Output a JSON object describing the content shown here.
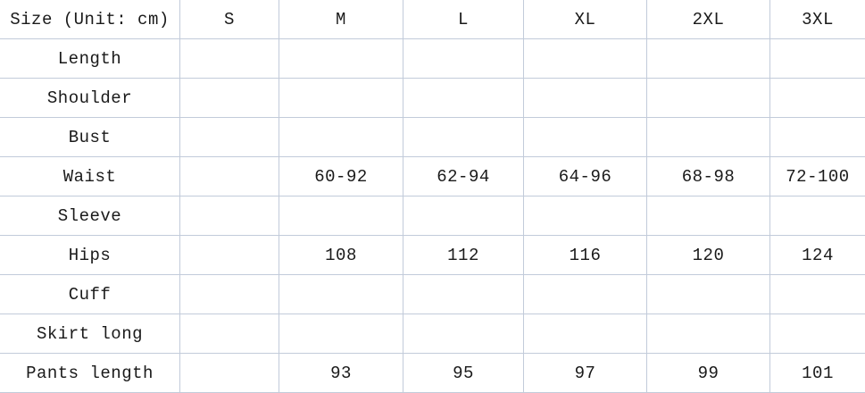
{
  "table": {
    "unit_header": "Size (Unit: cm)",
    "columns": [
      "S",
      "M",
      "L",
      "XL",
      "2XL",
      "3XL"
    ],
    "rows": [
      {
        "label": "Length",
        "values": [
          "",
          "",
          "",
          "",
          "",
          ""
        ]
      },
      {
        "label": "Shoulder",
        "values": [
          "",
          "",
          "",
          "",
          "",
          ""
        ]
      },
      {
        "label": "Bust",
        "values": [
          "",
          "",
          "",
          "",
          "",
          ""
        ]
      },
      {
        "label": "Waist",
        "values": [
          "",
          "60-92",
          "62-94",
          "64-96",
          "68-98",
          "72-100"
        ]
      },
      {
        "label": "Sleeve",
        "values": [
          "",
          "",
          "",
          "",
          "",
          ""
        ]
      },
      {
        "label": "Hips",
        "values": [
          "",
          "108",
          "112",
          "116",
          "120",
          "124"
        ]
      },
      {
        "label": "Cuff",
        "values": [
          "",
          "",
          "",
          "",
          "",
          ""
        ]
      },
      {
        "label": "Skirt long",
        "values": [
          "",
          "",
          "",
          "",
          "",
          ""
        ]
      },
      {
        "label": "Pants length",
        "values": [
          "",
          "93",
          "95",
          "97",
          "99",
          "101"
        ]
      }
    ]
  },
  "chart_data": {
    "type": "table",
    "title": "Size (Unit: cm)",
    "columns": [
      "Size (Unit: cm)",
      "S",
      "M",
      "L",
      "XL",
      "2XL",
      "3XL"
    ],
    "rows": [
      [
        "Length",
        "",
        "",
        "",
        "",
        "",
        ""
      ],
      [
        "Shoulder",
        "",
        "",
        "",
        "",
        "",
        ""
      ],
      [
        "Bust",
        "",
        "",
        "",
        "",
        "",
        ""
      ],
      [
        "Waist",
        "",
        "60-92",
        "62-94",
        "64-96",
        "68-98",
        "72-100"
      ],
      [
        "Sleeve",
        "",
        "",
        "",
        "",
        "",
        ""
      ],
      [
        "Hips",
        "",
        "108",
        "112",
        "116",
        "120",
        "124"
      ],
      [
        "Cuff",
        "",
        "",
        "",
        "",
        "",
        ""
      ],
      [
        "Skirt long",
        "",
        "",
        "",
        "",
        "",
        ""
      ],
      [
        "Pants length",
        "",
        "93",
        "95",
        "97",
        "99",
        "101"
      ]
    ],
    "layout_hints": {
      "gridlines": true,
      "header_row": true,
      "unit": "cm"
    }
  },
  "colors": {
    "background": "#ffffff",
    "gridline": "#c2cbda",
    "text": "#1a1a1a"
  }
}
